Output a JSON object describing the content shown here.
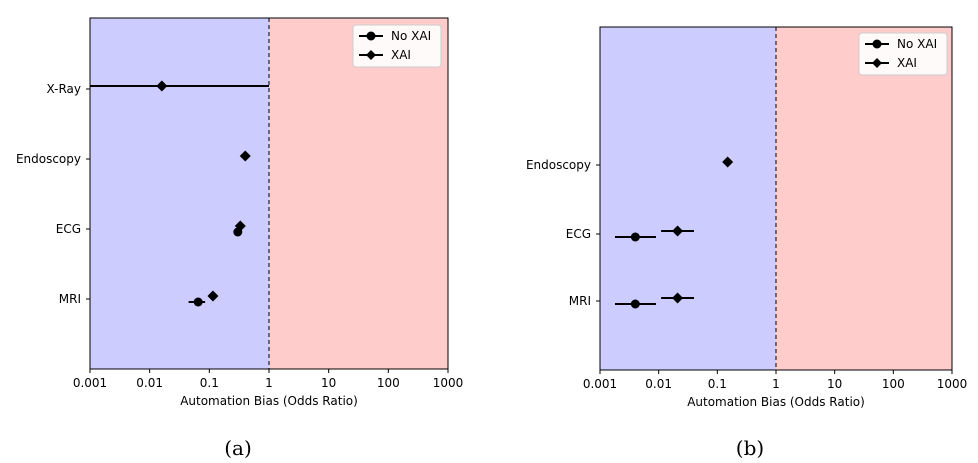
{
  "chart_data": [
    {
      "type": "scatter",
      "caption": "(a)",
      "xscale": "log",
      "xlim": [
        0.001,
        1000
      ],
      "xticks": [
        "0.001",
        "0.01",
        "0.1",
        "1",
        "10",
        "100",
        "1000"
      ],
      "xlabel": "Automation Bias (Odds Ratio)",
      "categories": [
        "X-Ray",
        "Endoscopy",
        "ECG",
        "MRI"
      ],
      "regions": [
        {
          "from": 0.001,
          "to": 1,
          "color": "#ccccff"
        },
        {
          "from": 1,
          "to": 1000,
          "color": "#ffcccc"
        }
      ],
      "reference_line": 1,
      "legend_position": "top-right",
      "series": [
        {
          "name": "No XAI",
          "marker": "circle",
          "points": [
            {
              "category": "ECG",
              "value": 0.3,
              "ci": [
                0.28,
                0.32
              ]
            },
            {
              "category": "MRI",
              "value": 0.065,
              "ci": [
                0.045,
                0.085
              ]
            }
          ]
        },
        {
          "name": "XAI",
          "marker": "diamond",
          "points": [
            {
              "category": "X-Ray",
              "value": 0.016,
              "ci": [
                0.001,
                1
              ]
            },
            {
              "category": "Endoscopy",
              "value": 0.4,
              "ci": [
                0.38,
                0.42
              ]
            },
            {
              "category": "ECG",
              "value": 0.33,
              "ci": [
                0.31,
                0.35
              ]
            },
            {
              "category": "MRI",
              "value": 0.115,
              "ci": [
                0.11,
                0.12
              ]
            }
          ]
        }
      ]
    },
    {
      "type": "scatter",
      "caption": "(b)",
      "xscale": "log",
      "xlim": [
        0.001,
        1000
      ],
      "xticks": [
        "0.001",
        "0.01",
        "0.1",
        "1",
        "10",
        "100",
        "1000"
      ],
      "xlabel": "Automation Bias (Odds Ratio)",
      "categories": [
        "Endoscopy",
        "ECG",
        "MRI"
      ],
      "regions": [
        {
          "from": 0.001,
          "to": 1,
          "color": "#ccccff"
        },
        {
          "from": 1,
          "to": 1000,
          "color": "#ffcccc"
        }
      ],
      "reference_line": 1,
      "legend_position": "top-right",
      "series": [
        {
          "name": "No XAI",
          "marker": "circle",
          "points": [
            {
              "category": "ECG",
              "value": 0.004,
              "ci": [
                0.0018,
                0.009
              ]
            },
            {
              "category": "MRI",
              "value": 0.004,
              "ci": [
                0.0018,
                0.009
              ]
            }
          ]
        },
        {
          "name": "XAI",
          "marker": "diamond",
          "points": [
            {
              "category": "Endoscopy",
              "value": 0.15,
              "ci": [
                0.14,
                0.16
              ]
            },
            {
              "category": "ECG",
              "value": 0.021,
              "ci": [
                0.011,
                0.04
              ]
            },
            {
              "category": "MRI",
              "value": 0.021,
              "ci": [
                0.011,
                0.04
              ]
            }
          ]
        }
      ]
    }
  ]
}
